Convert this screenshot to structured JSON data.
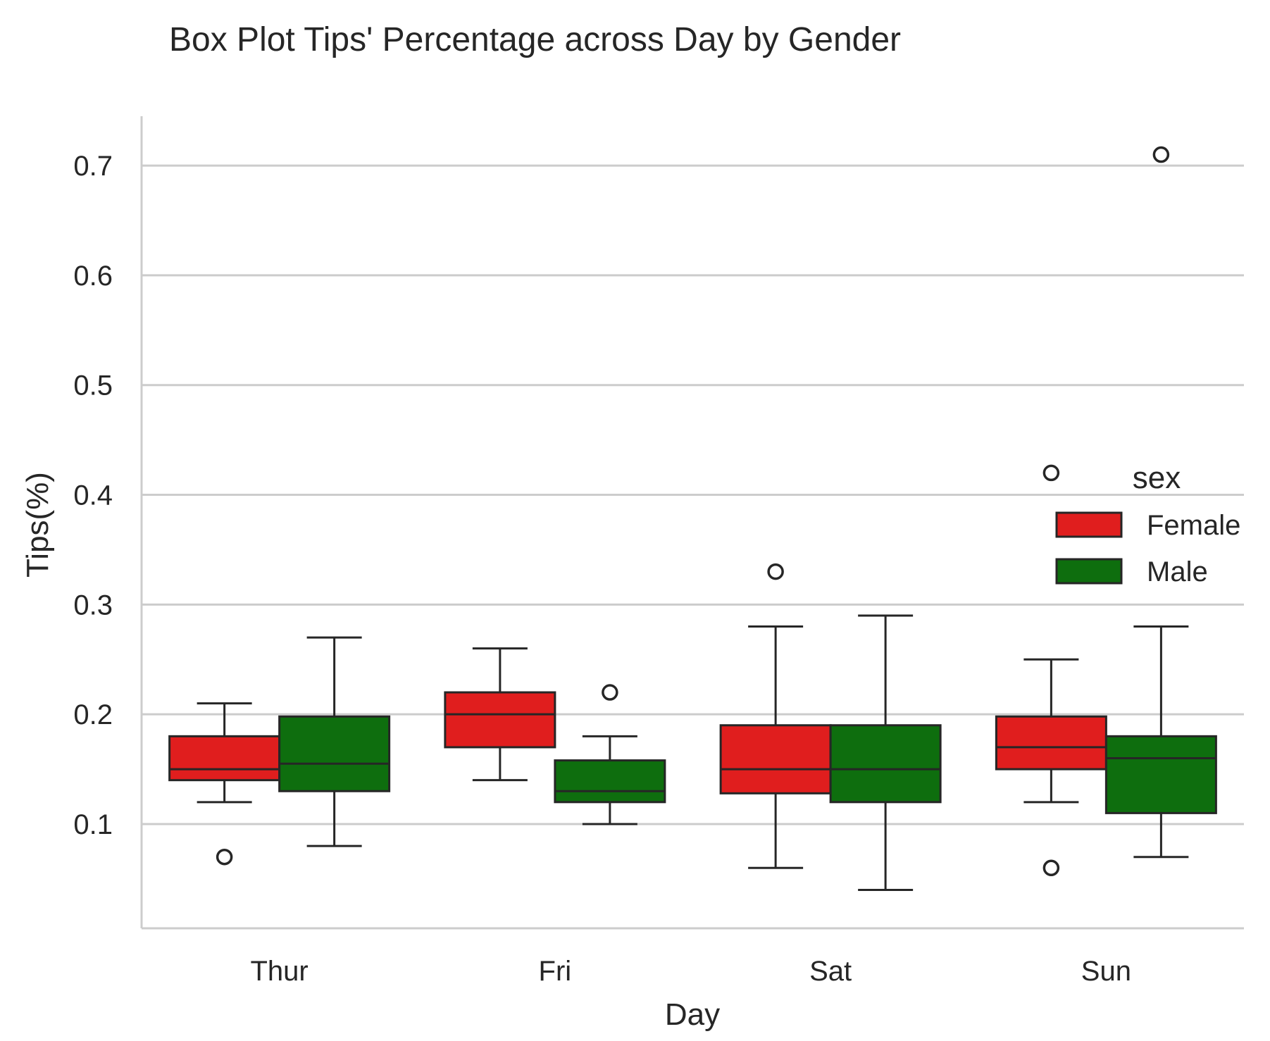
{
  "chart_data": {
    "type": "box",
    "title": "Box Plot Tips' Percentage across Day by Gender",
    "xlabel": "Day",
    "ylabel": "Tips(%)",
    "categories": [
      "Thur",
      "Fri",
      "Sat",
      "Sun"
    ],
    "ylim": [
      0.005,
      0.745
    ],
    "yticks": [
      0.1,
      0.2,
      0.3,
      0.4,
      0.5,
      0.6,
      0.7
    ],
    "ytick_labels": [
      "0.1",
      "0.2",
      "0.3",
      "0.4",
      "0.5",
      "0.6",
      "0.7"
    ],
    "grid": "horizontal",
    "legend": {
      "title": "sex",
      "placement": "right"
    },
    "colors": {
      "Female": "#e01e1e",
      "Male": "#0e6e0e",
      "edge": "#262626",
      "grid": "#cccccc"
    },
    "series": [
      {
        "name": "Female",
        "boxes": [
          {
            "category": "Thur",
            "whisker_low": 0.12,
            "q1": 0.14,
            "median": 0.15,
            "q3": 0.18,
            "whisker_high": 0.21,
            "outliers": [
              0.07
            ]
          },
          {
            "category": "Fri",
            "whisker_low": 0.14,
            "q1": 0.17,
            "median": 0.2,
            "q3": 0.22,
            "whisker_high": 0.26,
            "outliers": []
          },
          {
            "category": "Sat",
            "whisker_low": 0.06,
            "q1": 0.128,
            "median": 0.15,
            "q3": 0.19,
            "whisker_high": 0.28,
            "outliers": [
              0.33
            ]
          },
          {
            "category": "Sun",
            "whisker_low": 0.12,
            "q1": 0.15,
            "median": 0.17,
            "q3": 0.198,
            "whisker_high": 0.25,
            "outliers": [
              0.06,
              0.42
            ]
          }
        ]
      },
      {
        "name": "Male",
        "boxes": [
          {
            "category": "Thur",
            "whisker_low": 0.08,
            "q1": 0.13,
            "median": 0.155,
            "q3": 0.198,
            "whisker_high": 0.27,
            "outliers": []
          },
          {
            "category": "Fri",
            "whisker_low": 0.1,
            "q1": 0.12,
            "median": 0.13,
            "q3": 0.158,
            "whisker_high": 0.18,
            "outliers": [
              0.22
            ]
          },
          {
            "category": "Sat",
            "whisker_low": 0.04,
            "q1": 0.12,
            "median": 0.15,
            "q3": 0.19,
            "whisker_high": 0.29,
            "outliers": []
          },
          {
            "category": "Sun",
            "whisker_low": 0.07,
            "q1": 0.11,
            "median": 0.16,
            "q3": 0.18,
            "whisker_high": 0.28,
            "outliers": [
              0.71
            ]
          }
        ]
      }
    ]
  }
}
